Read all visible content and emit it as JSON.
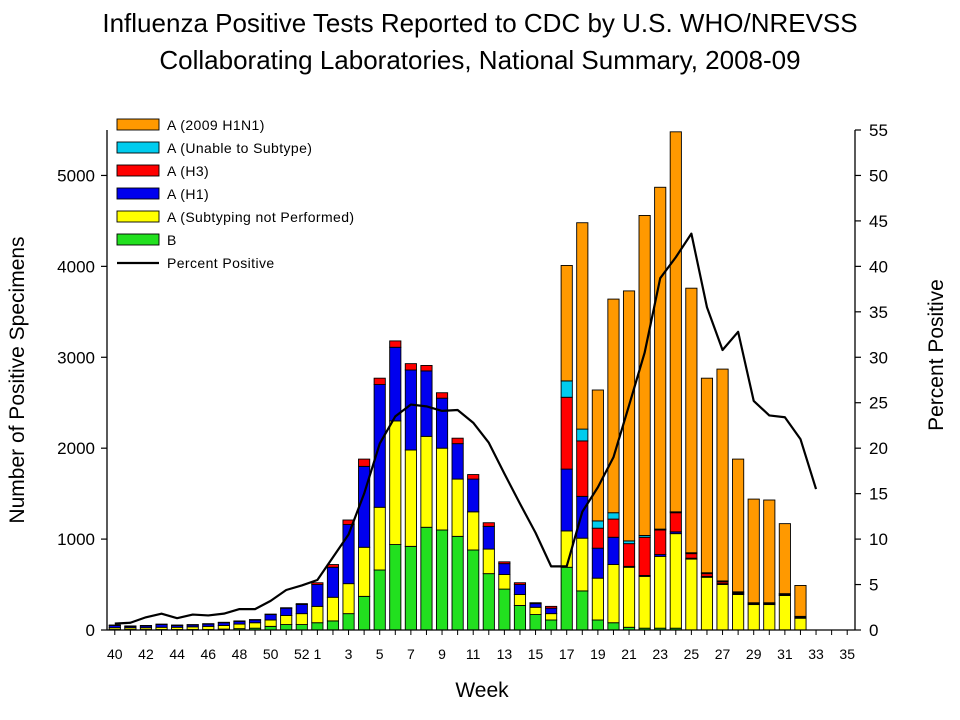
{
  "chart_data": {
    "type": "bar",
    "stacked": true,
    "title": "Influenza Positive Tests Reported to CDC by U.S. WHO/NREVSS",
    "subtitle": "Collaborating Laboratories, National Summary, 2008-09",
    "xlabel": "Week",
    "ylabel": "Number of Positive Specimens",
    "y2label": "Percent Positive",
    "ylim": [
      0,
      5500
    ],
    "y2lim": [
      0,
      55
    ],
    "yticks": [
      0,
      1000,
      2000,
      3000,
      4000,
      5000
    ],
    "y2ticks": [
      0,
      5,
      10,
      15,
      20,
      25,
      30,
      35,
      40,
      45,
      50,
      55
    ],
    "x_tick_labels": [
      "40",
      "42",
      "44",
      "46",
      "48",
      "50",
      "52",
      "1",
      "3",
      "5",
      "7",
      "9",
      "11",
      "13",
      "15",
      "17",
      "19",
      "21",
      "23",
      "25",
      "27",
      "29",
      "31",
      "33",
      "35"
    ],
    "grid": false,
    "legend_position": "top-left",
    "categories": [
      "40",
      "41",
      "42",
      "43",
      "44",
      "45",
      "46",
      "47",
      "48",
      "49",
      "50",
      "51",
      "52",
      "1",
      "2",
      "3",
      "4",
      "5",
      "6",
      "7",
      "8",
      "9",
      "10",
      "11",
      "12",
      "13",
      "14",
      "15",
      "16",
      "17",
      "18",
      "19",
      "20",
      "21",
      "22",
      "23",
      "24",
      "25",
      "26",
      "27",
      "28",
      "29",
      "30",
      "31",
      "32",
      "33",
      "34",
      "35"
    ],
    "series": [
      {
        "name": "B",
        "color": "#22e01f",
        "values": [
          5,
          5,
          5,
          5,
          5,
          5,
          5,
          10,
          15,
          20,
          40,
          60,
          60,
          80,
          100,
          180,
          370,
          660,
          940,
          920,
          1130,
          1100,
          1030,
          880,
          620,
          450,
          270,
          170,
          110,
          690,
          430,
          110,
          80,
          30,
          20,
          20,
          20,
          0,
          0,
          0,
          0,
          0,
          0,
          0,
          0,
          0,
          0,
          0
        ]
      },
      {
        "name": "A (Subtyping not Performed)",
        "color": "#ffff00",
        "values": [
          20,
          20,
          20,
          25,
          25,
          30,
          35,
          40,
          50,
          60,
          70,
          100,
          120,
          180,
          260,
          330,
          540,
          690,
          1360,
          1060,
          1000,
          900,
          630,
          420,
          270,
          160,
          120,
          80,
          70,
          400,
          580,
          460,
          640,
          660,
          570,
          790,
          1040,
          780,
          580,
          500,
          390,
          280,
          280,
          380,
          130,
          0,
          0,
          0
        ]
      },
      {
        "name": "A (H1)",
        "color": "#0000ee",
        "values": [
          25,
          15,
          20,
          30,
          20,
          20,
          25,
          30,
          30,
          30,
          60,
          80,
          100,
          240,
          330,
          650,
          890,
          1350,
          810,
          880,
          720,
          550,
          390,
          360,
          250,
          120,
          110,
          40,
          60,
          680,
          460,
          330,
          300,
          10,
          10,
          20,
          20,
          10,
          10,
          10,
          10,
          5,
          5,
          5,
          5,
          0,
          0,
          0
        ]
      },
      {
        "name": "A (H3)",
        "color": "#ff0000",
        "values": [
          5,
          5,
          5,
          5,
          5,
          5,
          5,
          5,
          5,
          5,
          5,
          5,
          10,
          20,
          30,
          50,
          80,
          70,
          70,
          70,
          60,
          60,
          60,
          50,
          40,
          20,
          20,
          10,
          20,
          790,
          610,
          220,
          200,
          250,
          420,
          270,
          210,
          50,
          30,
          20,
          10,
          10,
          10,
          10,
          10,
          0,
          0,
          0
        ]
      },
      {
        "name": "A (Unable to Subtype)",
        "color": "#00ccee",
        "values": [
          0,
          0,
          0,
          0,
          0,
          0,
          0,
          0,
          0,
          0,
          0,
          0,
          0,
          0,
          0,
          0,
          0,
          0,
          0,
          0,
          0,
          0,
          0,
          0,
          0,
          0,
          0,
          0,
          0,
          180,
          130,
          80,
          70,
          30,
          20,
          10,
          10,
          10,
          10,
          10,
          10,
          5,
          5,
          5,
          5,
          0,
          0,
          0
        ]
      },
      {
        "name": "A (2009 H1N1)",
        "color": "#ff9900",
        "values": [
          0,
          0,
          0,
          0,
          0,
          0,
          0,
          0,
          0,
          0,
          0,
          0,
          0,
          0,
          0,
          0,
          0,
          0,
          0,
          0,
          0,
          0,
          0,
          0,
          0,
          0,
          0,
          0,
          0,
          1270,
          2270,
          1440,
          2350,
          2750,
          3520,
          3760,
          4180,
          2910,
          2140,
          2330,
          1460,
          1140,
          1130,
          770,
          340,
          0,
          0,
          0
        ]
      }
    ],
    "line_series": {
      "name": "Percent Positive",
      "color": "#000000",
      "values": [
        0.7,
        0.8,
        1.4,
        1.8,
        1.3,
        1.7,
        1.6,
        1.8,
        2.3,
        2.3,
        3.2,
        4.4,
        4.9,
        5.5,
        8.0,
        10.5,
        15.0,
        20.5,
        23.5,
        24.8,
        24.6,
        24.1,
        24.2,
        22.8,
        20.6,
        17.2,
        13.9,
        10.7,
        7.0,
        7.0,
        13.0,
        15.7,
        19.0,
        24.7,
        30.5,
        38.7,
        41.0,
        43.6,
        35.5,
        30.8,
        32.8,
        25.2,
        23.6,
        23.4,
        21.0,
        15.5,
        null,
        null
      ]
    }
  }
}
